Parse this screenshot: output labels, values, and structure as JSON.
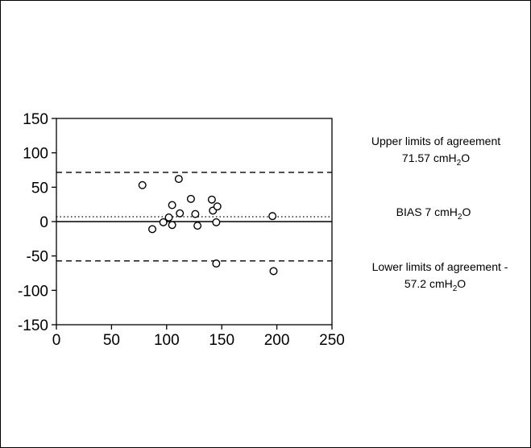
{
  "chart_data": {
    "type": "scatter",
    "xlabel": "",
    "ylabel": "",
    "xlim": [
      0,
      250
    ],
    "ylim": [
      -150,
      150
    ],
    "x_ticks": [
      "0",
      "50",
      "100",
      "150",
      "200",
      "250"
    ],
    "y_ticks": [
      "150",
      "100",
      "50",
      "0",
      "-50",
      "-100",
      "-150"
    ],
    "grid": false,
    "series": [
      {
        "points": [
          {
            "x": 78,
            "y": 53
          },
          {
            "x": 87,
            "y": -11
          },
          {
            "x": 97,
            "y": -1
          },
          {
            "x": 102,
            "y": 6
          },
          {
            "x": 105,
            "y": 24
          },
          {
            "x": 105,
            "y": -5
          },
          {
            "x": 111,
            "y": 62
          },
          {
            "x": 112,
            "y": 12
          },
          {
            "x": 122,
            "y": 33
          },
          {
            "x": 126,
            "y": 11
          },
          {
            "x": 128,
            "y": -6
          },
          {
            "x": 141,
            "y": 32
          },
          {
            "x": 142,
            "y": 16
          },
          {
            "x": 145,
            "y": -1
          },
          {
            "x": 146,
            "y": 22
          },
          {
            "x": 145,
            "y": -61
          },
          {
            "x": 196,
            "y": 8
          },
          {
            "x": 197,
            "y": -72
          }
        ]
      }
    ],
    "reference_lines": [
      {
        "y": 71.57,
        "style": "dashed",
        "label_line1": "Upper limits of agreement",
        "label_line2_pre": "71.57 cmH",
        "label_line2_sub": "2",
        "label_line2_post": "O"
      },
      {
        "y": 7,
        "style": "dotted",
        "label_line1_pre": "BIAS 7 cmH",
        "label_line1_sub": "2",
        "label_line1_post": "O"
      },
      {
        "y": 0,
        "style": "solid"
      },
      {
        "y": -57.2,
        "style": "dashed",
        "label_line1": "Lower limits of agreement -",
        "label_line2_pre": "57.2 cmH",
        "label_line2_sub": "2",
        "label_line2_post": "O"
      }
    ]
  }
}
